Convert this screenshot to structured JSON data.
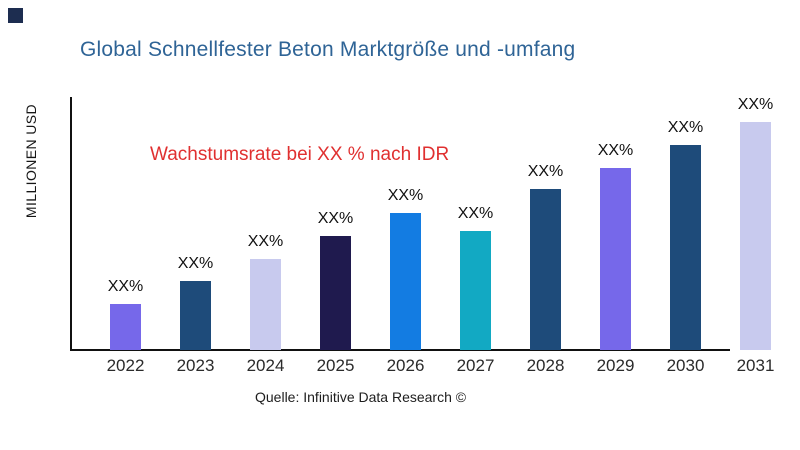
{
  "brand_mark": {
    "color": "#1d2d50"
  },
  "header": {
    "title": "Global Schnellfester Beton Marktgröße und -umfang",
    "title_color": "#2f6496"
  },
  "annotation": {
    "text": "Wachstumsrate bei XX % nach IDR",
    "color": "#e03030"
  },
  "footer": {
    "source": "Quelle: Infinitive Data Research ©"
  },
  "chart_data": {
    "type": "bar",
    "title": "Global Schnellfester Beton Marktgröße und -umfang",
    "ylabel": "MILLIONEN USD",
    "xlabel": "",
    "categories": [
      "2022",
      "2023",
      "2024",
      "2025",
      "2026",
      "2027",
      "2028",
      "2029",
      "2030",
      "2031"
    ],
    "series": [
      {
        "name": "Marktgröße",
        "values": [
          46,
          69,
          91,
          114,
          137,
          119,
          161,
          182,
          205,
          228
        ],
        "unit": "relative height (numeric axis values not shown in chart)"
      }
    ],
    "value_labels": [
      "XX%",
      "XX%",
      "XX%",
      "XX%",
      "XX%",
      "XX%",
      "XX%",
      "XX%",
      "XX%",
      "XX%"
    ],
    "bar_colors": [
      "#7668ea",
      "#1e4b7a",
      "#c8caee",
      "#1f1a4e",
      "#137ce2",
      "#12a9c3",
      "#1e4b7a",
      "#7668ea",
      "#1e4b7a",
      "#c8caee"
    ],
    "annotation": "Wachstumsrate bei XX % nach IDR",
    "source": "Quelle: Infinitive Data Research ©",
    "grid": false,
    "legend": false,
    "axis_color": "#111111"
  }
}
